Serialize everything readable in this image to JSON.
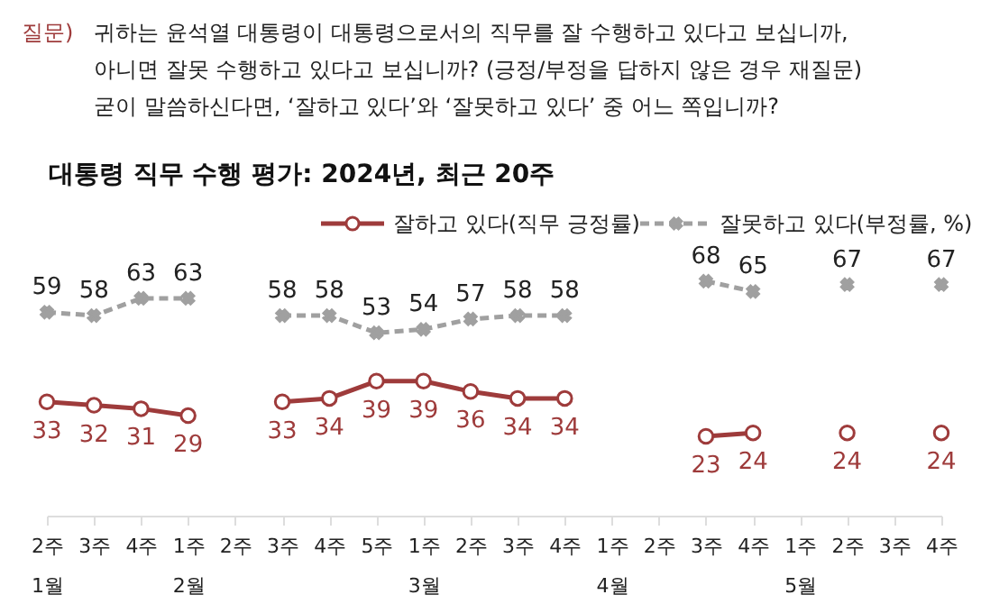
{
  "chart_data": {
    "type": "line",
    "title": "대통령 직무 수행 평가: 2024년, 최근 20주",
    "subtitle": "귀하는 윤석열 대통령이 대통령으로서의 직무를 잘 수행하고 있다고 보십니까,\n아니면 잘못 수행하고 있다고 보십니까? (긍정/부정을 답하지 않은 경우 재질문)\n굳이 말씀하신다면, ‘잘하고 있다’와 ‘잘못하고 있다’ 중 어느 쪽입니까?",
    "annotations": [
      "질문)"
    ],
    "categories": [
      "2주\n1월",
      "3주",
      "4주",
      "1주\n2월",
      "2주",
      "3주",
      "4주",
      "5주",
      "1주\n3월",
      "2주",
      "3주",
      "4주",
      "1주\n4월",
      "2주",
      "3주",
      "4주",
      "1주\n5월",
      "2주",
      "3주",
      "4주"
    ],
    "series": [
      {
        "name": "잘하고 있다(직무 긍정률)",
        "color": "#9e3b3b",
        "marker": "circle",
        "line_style": "solid",
        "values": [
          33,
          32,
          31,
          29,
          null,
          33,
          34,
          39,
          39,
          36,
          34,
          34,
          null,
          null,
          23,
          24,
          null,
          24,
          null,
          24
        ]
      },
      {
        "name": "잘못하고 있다(부정률, %)",
        "color": "#a0a0a0",
        "marker": "cross",
        "line_style": "dashed",
        "values": [
          59,
          58,
          63,
          63,
          null,
          58,
          58,
          53,
          54,
          57,
          58,
          58,
          null,
          null,
          68,
          65,
          null,
          67,
          null,
          67
        ]
      }
    ],
    "data_labels": true,
    "legend": "top right",
    "grid": false
  }
}
